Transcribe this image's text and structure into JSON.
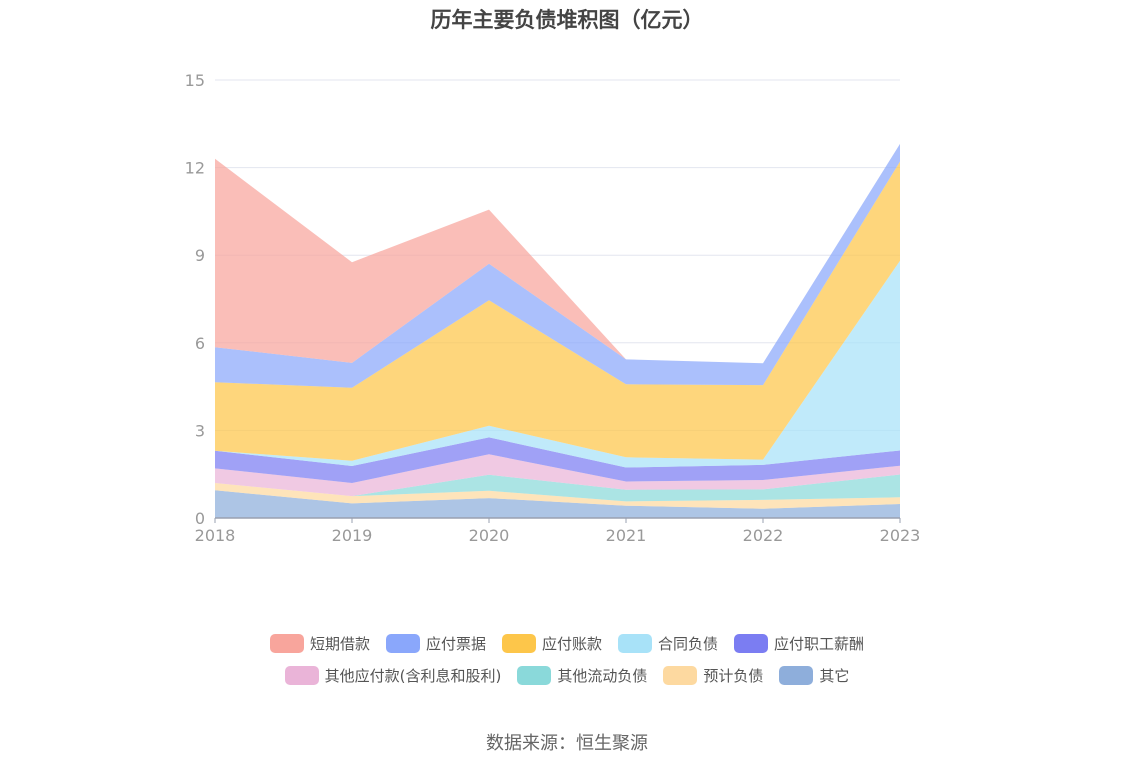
{
  "chart_data": {
    "type": "area",
    "stacked": true,
    "title": "历年主要负债堆积图（亿元）",
    "x": [
      "2018",
      "2019",
      "2020",
      "2021",
      "2022",
      "2023"
    ],
    "ylim": [
      0,
      15
    ],
    "yticks": [
      "0",
      "3",
      "6",
      "9",
      "12",
      "15"
    ],
    "grid": true,
    "legend_position": "bottom",
    "series": [
      {
        "name": "其它",
        "color": "#8eaedb",
        "values": [
          0.95,
          0.5,
          0.68,
          0.42,
          0.32,
          0.48
        ]
      },
      {
        "name": "预计负债",
        "color": "#fdd9a0",
        "values": [
          0.25,
          0.25,
          0.25,
          0.15,
          0.3,
          0.23
        ]
      },
      {
        "name": "其他流动负债",
        "color": "#8ad9da",
        "values": [
          0.0,
          0.0,
          0.55,
          0.4,
          0.36,
          0.78
        ]
      },
      {
        "name": "其他应付款(含利息和股利)",
        "color": "#eab4d8",
        "values": [
          0.5,
          0.45,
          0.7,
          0.28,
          0.32,
          0.3
        ]
      },
      {
        "name": "应付职工薪酬",
        "color": "#7b7df2",
        "values": [
          0.6,
          0.58,
          0.58,
          0.48,
          0.52,
          0.52
        ]
      },
      {
        "name": "合同负债",
        "color": "#a8e2f8",
        "values": [
          0.0,
          0.18,
          0.4,
          0.35,
          0.18,
          6.5
        ]
      },
      {
        "name": "应付账款",
        "color": "#fdc64a",
        "values": [
          2.35,
          2.5,
          4.3,
          2.5,
          2.55,
          3.4
        ]
      },
      {
        "name": "应付票据",
        "color": "#8aa7fb",
        "values": [
          1.2,
          0.85,
          1.25,
          0.85,
          0.75,
          0.6
        ]
      },
      {
        "name": "短期借款",
        "color": "#f8a59c",
        "values": [
          6.45,
          3.45,
          1.85,
          0.0,
          0.0,
          0.0
        ]
      }
    ]
  },
  "legend_rows": [
    [
      "短期借款",
      "应付票据",
      "应付账款",
      "合同负债",
      "应付职工薪酬"
    ],
    [
      "其他应付款(含利息和股利)",
      "其他流动负债",
      "预计负债",
      "其它"
    ]
  ],
  "source": "数据来源：恒生聚源"
}
